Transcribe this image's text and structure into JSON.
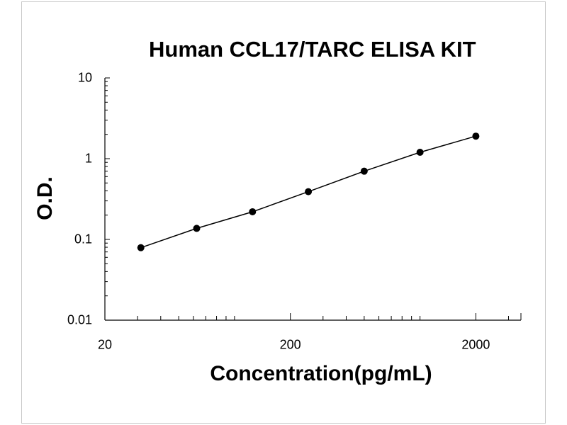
{
  "chart_data": {
    "type": "line",
    "title": "Human CCL17/TARC ELISA KIT",
    "xlabel": "Concentration(pg/mL)",
    "ylabel": "O.D.",
    "x_scale": "log",
    "y_scale": "log",
    "xlim": [
      20,
      3500
    ],
    "ylim": [
      0.01,
      10
    ],
    "x_ticks": [
      {
        "value": 20,
        "label": "20"
      },
      {
        "value": 200,
        "label": "200"
      },
      {
        "value": 2000,
        "label": "2000"
      }
    ],
    "y_ticks": [
      {
        "value": 10,
        "label": "10"
      },
      {
        "value": 1,
        "label": "1"
      },
      {
        "value": 0.1,
        "label": "0.1"
      },
      {
        "value": 0.01,
        "label": "0.01"
      }
    ],
    "series": [
      {
        "x": [
          31.25,
          62.5,
          125,
          250,
          500,
          1000,
          2000
        ],
        "y": [
          0.079,
          0.137,
          0.22,
          0.39,
          0.7,
          1.2,
          1.9
        ]
      }
    ],
    "grid": false,
    "colors": {
      "line": "#000000",
      "marker": "#000000",
      "axis": "#000000",
      "frame": "#c8c8c8"
    }
  }
}
